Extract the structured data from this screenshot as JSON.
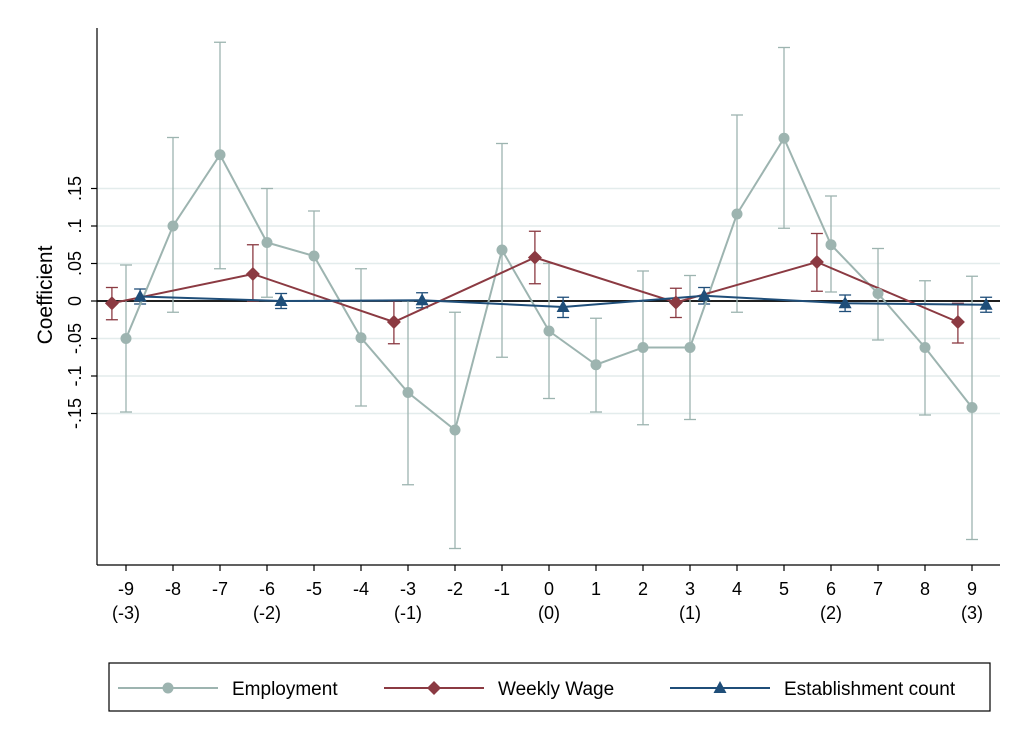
{
  "chart_data": {
    "type": "line",
    "ylabel": "Coefficient",
    "ylim": [
      -0.35,
      0.36
    ],
    "xlim": [
      -9.6,
      9.4
    ],
    "grid": true,
    "legend_position": "bottom",
    "y_ticks": [
      {
        "value": -0.15,
        "label": "-.15"
      },
      {
        "value": -0.1,
        "label": "-.1"
      },
      {
        "value": -0.05,
        "label": "-.05"
      },
      {
        "value": 0,
        "label": "0"
      },
      {
        "value": 0.05,
        "label": ".05"
      },
      {
        "value": 0.1,
        "label": ".1"
      },
      {
        "value": 0.15,
        "label": ".15"
      }
    ],
    "x_ticks": [
      {
        "value": -9,
        "label": "-9",
        "sublabel": "(-3)"
      },
      {
        "value": -8,
        "label": "-8",
        "sublabel": ""
      },
      {
        "value": -7,
        "label": "-7",
        "sublabel": ""
      },
      {
        "value": -6,
        "label": "-6",
        "sublabel": "(-2)"
      },
      {
        "value": -5,
        "label": "-5",
        "sublabel": ""
      },
      {
        "value": -4,
        "label": "-4",
        "sublabel": ""
      },
      {
        "value": -3,
        "label": "-3",
        "sublabel": "(-1)"
      },
      {
        "value": -2,
        "label": "-2",
        "sublabel": ""
      },
      {
        "value": -1,
        "label": "-1",
        "sublabel": ""
      },
      {
        "value": 0,
        "label": "0",
        "sublabel": "(0)"
      },
      {
        "value": 1,
        "label": "1",
        "sublabel": ""
      },
      {
        "value": 2,
        "label": "2",
        "sublabel": ""
      },
      {
        "value": 3,
        "label": "3",
        "sublabel": "(1)"
      },
      {
        "value": 4,
        "label": "4",
        "sublabel": ""
      },
      {
        "value": 5,
        "label": "5",
        "sublabel": ""
      },
      {
        "value": 6,
        "label": "6",
        "sublabel": "(2)"
      },
      {
        "value": 7,
        "label": "7",
        "sublabel": ""
      },
      {
        "value": 8,
        "label": "8",
        "sublabel": ""
      },
      {
        "value": 9,
        "label": "9",
        "sublabel": "(3)"
      }
    ],
    "series": [
      {
        "name": "Employment",
        "color": "#9db4b0",
        "marker": "circle",
        "points": [
          {
            "x": -9,
            "y": -0.05,
            "lo": -0.148,
            "hi": 0.048
          },
          {
            "x": -8,
            "y": 0.1,
            "lo": -0.015,
            "hi": 0.218
          },
          {
            "x": -7,
            "y": 0.195,
            "lo": 0.043,
            "hi": 0.345
          },
          {
            "x": -6,
            "y": 0.078,
            "lo": 0.005,
            "hi": 0.15
          },
          {
            "x": -5,
            "y": 0.06,
            "lo": 0.0,
            "hi": 0.12
          },
          {
            "x": -4,
            "y": -0.049,
            "lo": -0.14,
            "hi": 0.043
          },
          {
            "x": -3,
            "y": -0.122,
            "lo": -0.245,
            "hi": 0.0
          },
          {
            "x": -2,
            "y": -0.172,
            "lo": -0.33,
            "hi": -0.015
          },
          {
            "x": -1,
            "y": 0.068,
            "lo": -0.075,
            "hi": 0.21
          },
          {
            "x": 0,
            "y": -0.04,
            "lo": -0.13,
            "hi": 0.05
          },
          {
            "x": 1,
            "y": -0.085,
            "lo": -0.148,
            "hi": -0.023
          },
          {
            "x": 2,
            "y": -0.062,
            "lo": -0.165,
            "hi": 0.04
          },
          {
            "x": 3,
            "y": -0.062,
            "lo": -0.158,
            "hi": 0.034
          },
          {
            "x": 4,
            "y": 0.116,
            "lo": -0.015,
            "hi": 0.248
          },
          {
            "x": 5,
            "y": 0.217,
            "lo": 0.097,
            "hi": 0.338
          },
          {
            "x": 6,
            "y": 0.075,
            "lo": 0.012,
            "hi": 0.14
          },
          {
            "x": 7,
            "y": 0.01,
            "lo": -0.052,
            "hi": 0.07
          },
          {
            "x": 8,
            "y": -0.062,
            "lo": -0.152,
            "hi": 0.027
          },
          {
            "x": 9,
            "y": -0.142,
            "lo": -0.318,
            "hi": 0.033
          }
        ]
      },
      {
        "name": "Weekly Wage",
        "color": "#8b3a42",
        "marker": "diamond",
        "points": [
          {
            "x": -9.3,
            "y": -0.003,
            "lo": -0.025,
            "hi": 0.018
          },
          {
            "x": -6.3,
            "y": 0.036,
            "lo": 0.0,
            "hi": 0.075
          },
          {
            "x": -3.3,
            "y": -0.028,
            "lo": -0.057,
            "hi": 0.0
          },
          {
            "x": -0.3,
            "y": 0.058,
            "lo": 0.023,
            "hi": 0.093
          },
          {
            "x": 2.7,
            "y": -0.002,
            "lo": -0.022,
            "hi": 0.017
          },
          {
            "x": 5.7,
            "y": 0.052,
            "lo": 0.013,
            "hi": 0.09
          },
          {
            "x": 8.7,
            "y": -0.028,
            "lo": -0.056,
            "hi": -0.003
          }
        ]
      },
      {
        "name": "Establishment count",
        "color": "#1f4e79",
        "marker": "triangle",
        "points": [
          {
            "x": -8.7,
            "y": 0.006,
            "lo": -0.004,
            "hi": 0.016
          },
          {
            "x": -5.7,
            "y": 0.0,
            "lo": -0.01,
            "hi": 0.01
          },
          {
            "x": -2.7,
            "y": 0.001,
            "lo": -0.009,
            "hi": 0.011
          },
          {
            "x": 0.3,
            "y": -0.008,
            "lo": -0.022,
            "hi": 0.005
          },
          {
            "x": 3.3,
            "y": 0.007,
            "lo": -0.004,
            "hi": 0.018
          },
          {
            "x": 6.3,
            "y": -0.003,
            "lo": -0.014,
            "hi": 0.008
          },
          {
            "x": 9.3,
            "y": -0.005,
            "lo": -0.015,
            "hi": 0.005
          }
        ]
      }
    ]
  },
  "legend": {
    "items": [
      {
        "label": "Employment",
        "color": "#9db4b0",
        "marker": "circle"
      },
      {
        "label": "Weekly Wage",
        "color": "#8b3a42",
        "marker": "diamond"
      },
      {
        "label": "Establishment count",
        "color": "#1f4e79",
        "marker": "triangle"
      }
    ]
  }
}
